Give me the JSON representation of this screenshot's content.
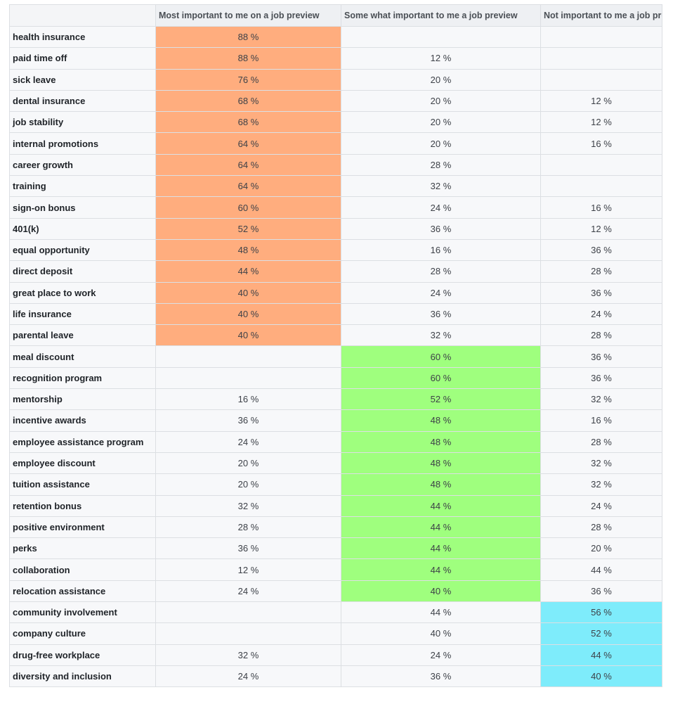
{
  "columns": [
    "",
    "Most important to me on a job preview",
    "Some what important to me a job preview",
    "Not important to me a job preview"
  ],
  "colors": {
    "orange": "#ffad7e",
    "green": "#9fff7e",
    "cyan": "#7eecfb"
  },
  "rows": [
    {
      "label": "health insurance",
      "most": "88 %",
      "some": "",
      "not": "",
      "highlight": "most"
    },
    {
      "label": "paid time off",
      "most": "88 %",
      "some": "12 %",
      "not": "",
      "highlight": "most"
    },
    {
      "label": "sick leave",
      "most": "76 %",
      "some": "20 %",
      "not": "",
      "highlight": "most"
    },
    {
      "label": "dental insurance",
      "most": "68 %",
      "some": "20 %",
      "not": "12 %",
      "highlight": "most"
    },
    {
      "label": "job stability",
      "most": "68 %",
      "some": "20 %",
      "not": "12 %",
      "highlight": "most"
    },
    {
      "label": "internal promotions",
      "most": "64 %",
      "some": "20 %",
      "not": "16 %",
      "highlight": "most"
    },
    {
      "label": "career growth",
      "most": "64 %",
      "some": "28 %",
      "not": "",
      "highlight": "most"
    },
    {
      "label": "training",
      "most": "64 %",
      "some": "32 %",
      "not": "",
      "highlight": "most"
    },
    {
      "label": "sign-on bonus",
      "most": "60 %",
      "some": "24 %",
      "not": "16 %",
      "highlight": "most"
    },
    {
      "label": "401(k)",
      "most": "52 %",
      "some": "36 %",
      "not": "12 %",
      "highlight": "most"
    },
    {
      "label": "equal opportunity",
      "most": "48 %",
      "some": "16 %",
      "not": "36 %",
      "highlight": "most"
    },
    {
      "label": "direct deposit",
      "most": "44 %",
      "some": "28 %",
      "not": "28 %",
      "highlight": "most"
    },
    {
      "label": "great place to work",
      "most": "40 %",
      "some": "24 %",
      "not": "36 %",
      "highlight": "most"
    },
    {
      "label": "life insurance",
      "most": "40 %",
      "some": "36 %",
      "not": "24 %",
      "highlight": "most"
    },
    {
      "label": "parental leave",
      "most": "40 %",
      "some": "32 %",
      "not": "28 %",
      "highlight": "most"
    },
    {
      "label": "meal discount",
      "most": "",
      "some": "60 %",
      "not": "36 %",
      "highlight": "some"
    },
    {
      "label": "recognition program",
      "most": "",
      "some": "60 %",
      "not": "36 %",
      "highlight": "some"
    },
    {
      "label": "mentorship",
      "most": "16 %",
      "some": "52 %",
      "not": "32 %",
      "highlight": "some"
    },
    {
      "label": "incentive awards",
      "most": "36 %",
      "some": "48 %",
      "not": "16 %",
      "highlight": "some"
    },
    {
      "label": "employee assistance program",
      "most": "24 %",
      "some": "48 %",
      "not": "28 %",
      "highlight": "some"
    },
    {
      "label": "employee discount",
      "most": "20 %",
      "some": "48 %",
      "not": "32 %",
      "highlight": "some"
    },
    {
      "label": "tuition assistance",
      "most": "20 %",
      "some": "48 %",
      "not": "32 %",
      "highlight": "some"
    },
    {
      "label": "retention bonus",
      "most": "32 %",
      "some": "44 %",
      "not": "24 %",
      "highlight": "some"
    },
    {
      "label": "positive environment",
      "most": "28 %",
      "some": "44 %",
      "not": "28 %",
      "highlight": "some"
    },
    {
      "label": "perks",
      "most": "36 %",
      "some": "44 %",
      "not": "20 %",
      "highlight": "some"
    },
    {
      "label": "collaboration",
      "most": "12 %",
      "some": "44 %",
      "not": "44 %",
      "highlight": "some"
    },
    {
      "label": "relocation assistance",
      "most": "24 %",
      "some": "40 %",
      "not": "36 %",
      "highlight": "some"
    },
    {
      "label": "community involvement",
      "most": "",
      "some": "44 %",
      "not": "56 %",
      "highlight": "not"
    },
    {
      "label": "company culture",
      "most": "",
      "some": "40 %",
      "not": "52 %",
      "highlight": "not"
    },
    {
      "label": "drug-free workplace",
      "most": "32 %",
      "some": "24 %",
      "not": "44 %",
      "highlight": "not"
    },
    {
      "label": "diversity and inclusion",
      "most": "24 %",
      "some": "36 %",
      "not": "40 %",
      "highlight": "not"
    }
  ]
}
